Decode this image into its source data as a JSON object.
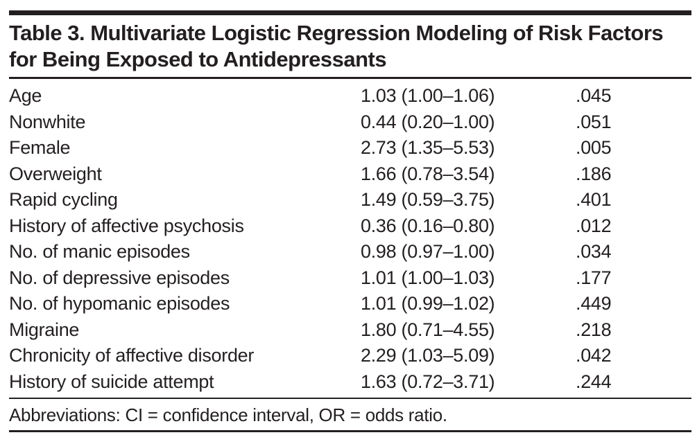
{
  "page": {
    "background": "#ffffff",
    "ink_color": "#231f20"
  },
  "table": {
    "title": "Table 3. Multivariate Logistic Regression Modeling of Risk Factors for Being Exposed to Antidepressants",
    "rows": [
      {
        "label": "Age",
        "value": "1.03 (1.00–1.06)",
        "p": ".045"
      },
      {
        "label": "Nonwhite",
        "value": "0.44 (0.20–1.00)",
        "p": ".051"
      },
      {
        "label": "Female",
        "value": "2.73 (1.35–5.53)",
        "p": ".005"
      },
      {
        "label": "Overweight",
        "value": "1.66 (0.78–3.54)",
        "p": ".186"
      },
      {
        "label": "Rapid cycling",
        "value": "1.49 (0.59–3.75)",
        "p": ".401"
      },
      {
        "label": "History of affective psychosis",
        "value": "0.36 (0.16–0.80)",
        "p": ".012"
      },
      {
        "label": "No. of manic episodes",
        "value": "0.98 (0.97–1.00)",
        "p": ".034"
      },
      {
        "label": "No. of depressive episodes",
        "value": "1.01 (1.00–1.03)",
        "p": ".177"
      },
      {
        "label": "No. of hypomanic episodes",
        "value": "1.01 (0.99–1.02)",
        "p": ".449"
      },
      {
        "label": "Migraine",
        "value": "1.80 (0.71–4.55)",
        "p": ".218"
      },
      {
        "label": "Chronicity of affective disorder",
        "value": "2.29 (1.03–5.09)",
        "p": ".042"
      },
      {
        "label": "History of suicide attempt",
        "value": "1.63 (0.72–3.71)",
        "p": ".244"
      }
    ],
    "footnote": "Abbreviations: CI = confidence interval, OR = odds ratio."
  }
}
